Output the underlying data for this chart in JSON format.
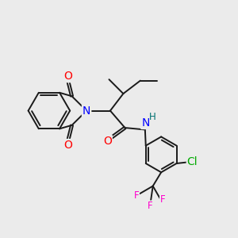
{
  "background_color": "#ebebeb",
  "bond_color": "#1a1a1a",
  "atom_colors": {
    "N": "#0000ff",
    "O": "#ff0000",
    "F": "#ff00cc",
    "Cl": "#00aa00",
    "H": "#007070",
    "C": "#1a1a1a"
  },
  "fs_large": 10,
  "fs_small": 8.5,
  "figsize": [
    3.0,
    3.0
  ],
  "dpi": 100,
  "lw": 1.4
}
